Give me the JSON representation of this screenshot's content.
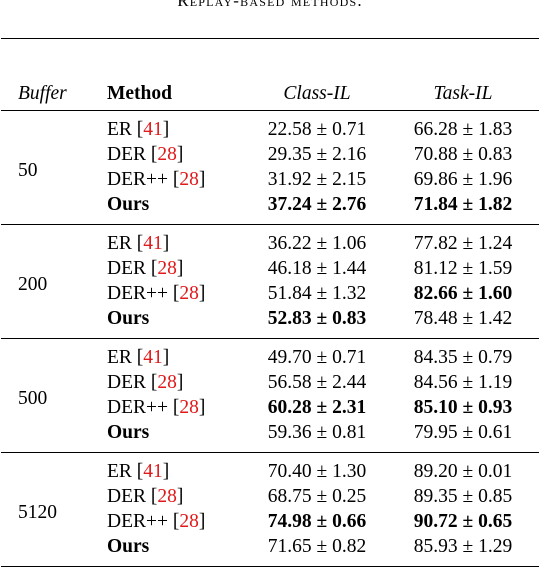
{
  "caption": "Replay-based methods.",
  "headers": {
    "buffer": "Buffer",
    "method": "Method",
    "class_il": "Class-IL",
    "task_il": "Task-IL"
  },
  "groups": [
    {
      "buffer": "50",
      "rows": [
        {
          "method": "ER",
          "ref": "41",
          "class_il": "22.58 ± 0.71",
          "task_il": "66.28 ± 1.83",
          "method_bold": false,
          "class_bold": false,
          "task_bold": false
        },
        {
          "method": "DER",
          "ref": "28",
          "class_il": "29.35 ± 2.16",
          "task_il": "70.88 ± 0.83",
          "method_bold": false,
          "class_bold": false,
          "task_bold": false
        },
        {
          "method": "DER++",
          "ref": "28",
          "class_il": "31.92 ± 2.15",
          "task_il": "69.86 ± 1.96",
          "method_bold": false,
          "class_bold": false,
          "task_bold": false
        },
        {
          "method": "Ours",
          "ref": "",
          "class_il": "37.24 ± 2.76",
          "task_il": "71.84 ± 1.82",
          "method_bold": true,
          "class_bold": true,
          "task_bold": true
        }
      ]
    },
    {
      "buffer": "200",
      "rows": [
        {
          "method": "ER",
          "ref": "41",
          "class_il": "36.22 ± 1.06",
          "task_il": "77.82 ± 1.24",
          "method_bold": false,
          "class_bold": false,
          "task_bold": false
        },
        {
          "method": "DER",
          "ref": "28",
          "class_il": "46.18 ± 1.44",
          "task_il": "81.12 ± 1.59",
          "method_bold": false,
          "class_bold": false,
          "task_bold": false
        },
        {
          "method": "DER++",
          "ref": "28",
          "class_il": "51.84 ± 1.32",
          "task_il": "82.66 ± 1.60",
          "method_bold": false,
          "class_bold": false,
          "task_bold": true
        },
        {
          "method": "Ours",
          "ref": "",
          "class_il": "52.83 ± 0.83",
          "task_il": "78.48 ± 1.42",
          "method_bold": true,
          "class_bold": true,
          "task_bold": false
        }
      ]
    },
    {
      "buffer": "500",
      "rows": [
        {
          "method": "ER",
          "ref": "41",
          "class_il": "49.70 ± 0.71",
          "task_il": "84.35 ± 0.79",
          "method_bold": false,
          "class_bold": false,
          "task_bold": false
        },
        {
          "method": "DER",
          "ref": "28",
          "class_il": "56.58 ± 2.44",
          "task_il": "84.56 ± 1.19",
          "method_bold": false,
          "class_bold": false,
          "task_bold": false
        },
        {
          "method": "DER++",
          "ref": "28",
          "class_il": "60.28 ± 2.31",
          "task_il": "85.10 ± 0.93",
          "method_bold": false,
          "class_bold": true,
          "task_bold": true
        },
        {
          "method": "Ours",
          "ref": "",
          "class_il": "59.36 ± 0.81",
          "task_il": "79.95 ± 0.61",
          "method_bold": true,
          "class_bold": false,
          "task_bold": false
        }
      ]
    },
    {
      "buffer": "5120",
      "rows": [
        {
          "method": "ER",
          "ref": "41",
          "class_il": "70.40 ± 1.30",
          "task_il": "89.20 ± 0.01",
          "method_bold": false,
          "class_bold": false,
          "task_bold": false
        },
        {
          "method": "DER",
          "ref": "28",
          "class_il": "68.75 ± 0.25",
          "task_il": "89.35 ± 0.85",
          "method_bold": false,
          "class_bold": false,
          "task_bold": false
        },
        {
          "method": "DER++",
          "ref": "28",
          "class_il": "74.98 ± 0.66",
          "task_il": "90.72 ± 0.65",
          "method_bold": false,
          "class_bold": true,
          "task_bold": true
        },
        {
          "method": "Ours",
          "ref": "",
          "class_il": "71.65 ± 0.82",
          "task_il": "85.93 ± 1.29",
          "method_bold": true,
          "class_bold": false,
          "task_bold": false
        }
      ]
    }
  ]
}
